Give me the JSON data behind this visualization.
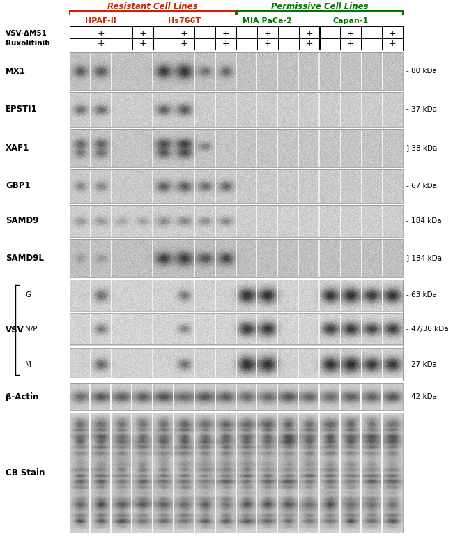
{
  "resistant_label": "Resistant Cell Lines",
  "permissive_label": "Permissive Cell Lines",
  "resistant_color": "#cc2200",
  "permissive_color": "#007700",
  "cell_lines": [
    "HPAF-II",
    "Hs766T",
    "MIA PaCa-2",
    "Capan-1"
  ],
  "cell_line_colors": [
    "#cc2200",
    "#cc2200",
    "#007700",
    "#007700"
  ],
  "row1_label": "VSV-ΔM51",
  "row2_label": "Ruxolitinib",
  "vsv_label": "VSV",
  "vsv_sub": [
    "G",
    "N/P",
    "M"
  ],
  "vsv_sizes": [
    "- 63 kDa",
    "- 47/30 kDa",
    "- 27 kDa"
  ],
  "beta_actin_label": "β-Actin",
  "beta_actin_size": "- 42 kDa",
  "cb_stain_label": "CB Stain",
  "blot_labels": [
    "MX1",
    "EPSTI1",
    "XAF1",
    "GBP1",
    "SAMD9",
    "SAMD9L"
  ],
  "blot_sizes": [
    "- 80 kDa",
    "- 37 kDa",
    "] 38 kDa",
    "- 67 kDa",
    "- 184 kDa",
    "] 184 kDa"
  ],
  "n_lanes": 16,
  "fig_w": 6.5,
  "fig_h": 7.69
}
